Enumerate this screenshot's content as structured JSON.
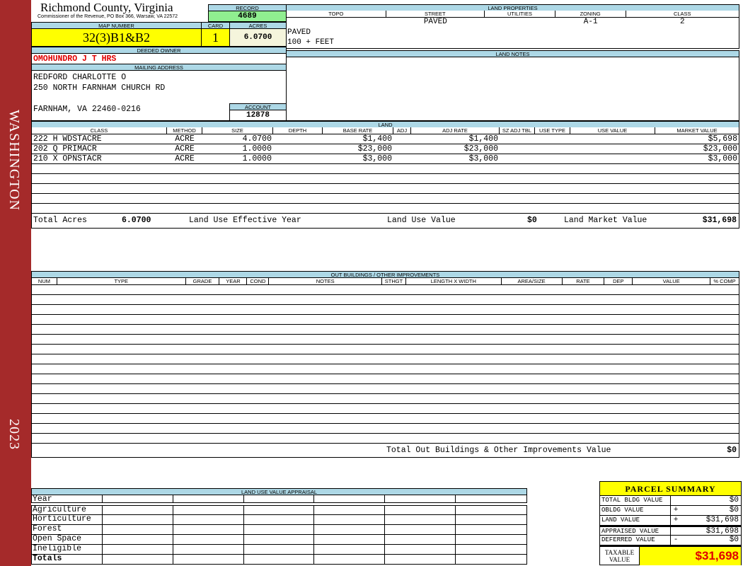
{
  "sidebar": {
    "district": "WASHINGTON",
    "year": "2023",
    "color": "#a52a2a"
  },
  "header": {
    "county": "Richmond County, Virginia",
    "office": "Commissioner of the Revenue, PO Box 366, Warsaw, VA 22572"
  },
  "record": {
    "label": "RECORD",
    "value": "4689"
  },
  "map": {
    "label": "MAP NUMBER",
    "value": "32(3)B1&B2"
  },
  "card": {
    "label": "CARD",
    "value": "1"
  },
  "acres": {
    "label": "ACRES",
    "value": "6.0700"
  },
  "owner": {
    "label": "DEEDED OWNER",
    "value": "OMOHUNDRO J T HRS"
  },
  "mailing": {
    "label": "MAILING ADDRESS",
    "line1": "REDFORD CHARLOTTE O",
    "line2": "250 NORTH FARNHAM CHURCH RD",
    "line3": "FARNHAM, VA 22460-0216"
  },
  "account": {
    "label": "ACCOUNT",
    "value": "12878"
  },
  "land_properties": {
    "label": "LAND PROPERTIES",
    "columns": [
      "TOPO",
      "STREET",
      "UTILITIES",
      "ZONING",
      "CLASS"
    ],
    "values": [
      "",
      "PAVED",
      "",
      "A-1",
      "2"
    ],
    "extra1": "PAVED",
    "extra2": "100 + FEET"
  },
  "land_notes": {
    "label": "LAND NOTES"
  },
  "land": {
    "label": "LAND",
    "columns": [
      "CLASS",
      "METHOD",
      "SIZE",
      "DEPTH",
      "BASE RATE",
      "ADJ",
      "ADJ RATE",
      "SZ ADJ TBL",
      "USE TYPE",
      "USE VALUE",
      "MARKET VALUE"
    ],
    "rows": [
      [
        "222 H WDSTACRE",
        "ACRE",
        "4.0700",
        "",
        "$1,400",
        "",
        "$1,400",
        "",
        "",
        "",
        "$5,698"
      ],
      [
        "202 Q PRIMACR",
        "ACRE",
        "1.0000",
        "",
        "$23,000",
        "",
        "$23,000",
        "",
        "",
        "",
        "$23,000"
      ],
      [
        "210 X OPNSTACR",
        "ACRE",
        "1.0000",
        "",
        "$3,000",
        "",
        "$3,000",
        "",
        "",
        "",
        "$3,000"
      ]
    ],
    "totals": {
      "acres_label": "Total Acres",
      "acres": "6.0700",
      "eff_year_label": "Land Use Effective Year",
      "use_value_label": "Land Use Value",
      "use_value": "$0",
      "market_label": "Land Market Value",
      "market": "$31,698"
    }
  },
  "outbuildings": {
    "label": "OUT BUILDINGS / OTHER IMPROVEMENTS",
    "columns": [
      "NUM",
      "TYPE",
      "GRADE",
      "YEAR",
      "COND",
      "NOTES",
      "STHGT",
      "LENGTH X WIDTH",
      "AREA/SIZE",
      "RATE",
      "DEP",
      "VALUE",
      "% COMP"
    ],
    "total_label": "Total Out Buildings & Other Improvements Value",
    "total": "$0"
  },
  "luva": {
    "label": "LAND USE VALUE APPRAISAL",
    "year_label": "Year",
    "rows": [
      "Agriculture",
      "Horticulture",
      "Forest",
      "Open Space",
      "Ineligible",
      "Totals"
    ]
  },
  "parcel_summary": {
    "title": "PARCEL SUMMARY",
    "rows": [
      {
        "label": "TOTAL BLDG VALUE",
        "sign": "",
        "value": "$0"
      },
      {
        "label": "OBLDG VALUE",
        "sign": "+",
        "value": "$0"
      },
      {
        "label": "LAND VALUE",
        "sign": "+",
        "value": "$31,698"
      },
      {
        "label": "APPRAISED VALUE",
        "sign": "",
        "value": "$31,698"
      },
      {
        "label": "DEFERRED VALUE",
        "sign": "-",
        "value": "$0"
      }
    ],
    "taxable_label": "TAXABLE VALUE",
    "taxable": "$31,698"
  }
}
